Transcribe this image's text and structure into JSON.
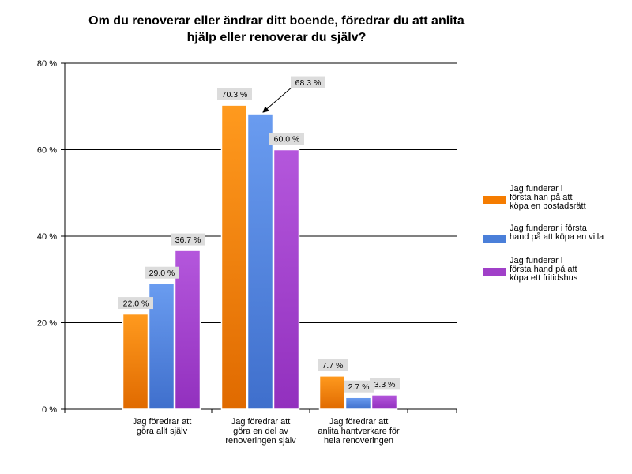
{
  "chart_data": {
    "type": "bar",
    "title_lines": [
      "Om du renoverar eller ändrar ditt boende, föredrar du att anlita",
      "hjälp eller renoverar du själv?"
    ],
    "categories": [
      [
        "Jag föredrar att",
        "göra allt själv"
      ],
      [
        "Jag föredrar att",
        "göra en del av",
        "renoveringen själv"
      ],
      [
        "Jag föredrar att",
        "anlita hantverkare för",
        "hela renoveringen"
      ]
    ],
    "series": [
      {
        "name_lines": [
          "Jag funderar i",
          "första han på att",
          "köpa en bostadsrätt"
        ],
        "color": "#f57c00",
        "values": [
          22.0,
          70.3,
          7.7
        ],
        "labels": [
          "22.0 %",
          "70.3 %",
          "7.7 %"
        ]
      },
      {
        "name_lines": [
          "Jag funderar i första",
          "hand på att köpa en villa"
        ],
        "color": "#4a7fd9",
        "values": [
          29.0,
          68.3,
          2.7
        ],
        "labels": [
          "29.0 %",
          "68.3 %",
          "2.7 %"
        ]
      },
      {
        "name_lines": [
          "Jag funderar i",
          "första hand på att",
          "köpa ett fritidshus"
        ],
        "color": "#a040c8",
        "values": [
          36.7,
          60.0,
          3.3
        ],
        "labels": [
          "36.7 %",
          "60.0 %",
          "3.3 %"
        ]
      }
    ],
    "ylim": [
      0,
      80
    ],
    "yticks": [
      0,
      20,
      40,
      60,
      80
    ],
    "ytick_labels": [
      "0 %",
      "20 %",
      "40 %",
      "60 %",
      "80 %"
    ],
    "grid": true,
    "legend_position": "right"
  }
}
